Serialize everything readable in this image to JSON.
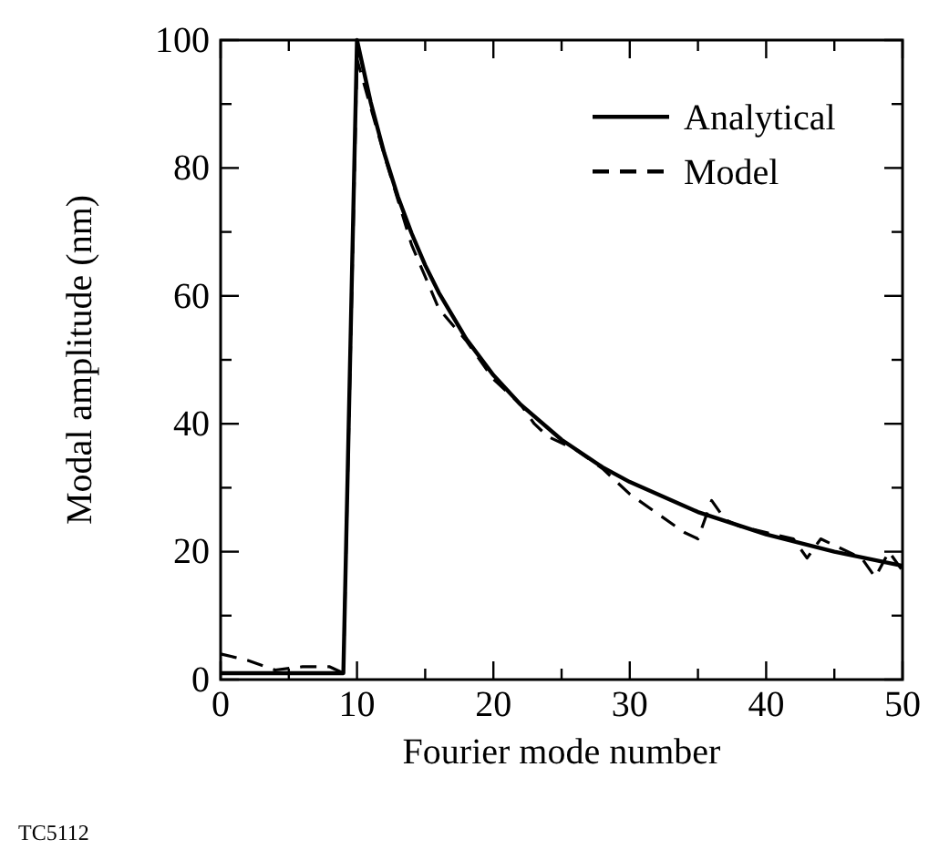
{
  "chart_data": {
    "type": "line",
    "xlabel": "Fourier mode number",
    "ylabel": "Modal amplitude (nm)",
    "xlim": [
      0,
      50
    ],
    "ylim": [
      0,
      100
    ],
    "xticks": [
      0,
      {
        "value": 5,
        "label": null
      },
      10,
      {
        "value": 15,
        "label": null
      },
      20,
      {
        "value": 25,
        "label": null
      },
      30,
      {
        "value": 35,
        "label": null
      },
      40,
      {
        "value": 45,
        "label": null
      },
      50
    ],
    "yticks": [
      0,
      {
        "value": 10,
        "label": null
      },
      20,
      {
        "value": 30,
        "label": null
      },
      40,
      {
        "value": 50,
        "label": null
      },
      60,
      {
        "value": 70,
        "label": null
      },
      80,
      {
        "value": 90,
        "label": null
      },
      100
    ],
    "grid": false,
    "legend": "top right",
    "marker": "none",
    "series": [
      {
        "name": "Analytical",
        "color": "#000000",
        "line_style": "solid",
        "x": [
          0,
          9,
          10,
          11,
          12,
          13,
          14,
          15,
          16,
          18,
          20,
          22,
          25,
          28,
          30,
          35,
          40,
          45,
          50
        ],
        "values": [
          1,
          1,
          100,
          90.3,
          82.3,
          75.5,
          69.8,
          64.8,
          60.5,
          53.3,
          47.6,
          43,
          37.5,
          33.2,
          30.9,
          26.2,
          22.7,
          20,
          17.8
        ]
      },
      {
        "name": "Model",
        "color": "#000000",
        "line_style": "dashed",
        "x": [
          0,
          2,
          4,
          6,
          8,
          9,
          10,
          12,
          14,
          15,
          16,
          18,
          20,
          22,
          23,
          24,
          26,
          28,
          30,
          32,
          34,
          35,
          36,
          37,
          38,
          40,
          42,
          43,
          44,
          46,
          47,
          48,
          49,
          50
        ],
        "values": [
          4,
          3,
          1.5,
          2,
          2,
          1,
          97,
          82,
          68,
          63,
          58,
          53,
          47,
          43,
          40,
          38,
          36,
          33,
          29,
          26,
          23,
          22,
          28,
          25,
          24,
          23,
          22,
          19,
          22,
          20,
          19,
          16,
          20,
          17
        ]
      }
    ],
    "annotations": [
      "TC5112"
    ]
  }
}
